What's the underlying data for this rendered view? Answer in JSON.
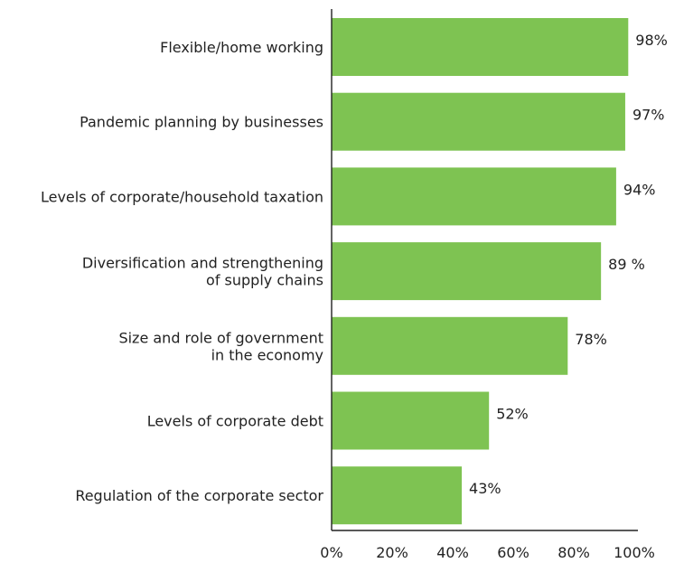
{
  "chart_data": {
    "type": "bar",
    "orientation": "horizontal",
    "title": "",
    "xlabel": "",
    "ylabel": "",
    "categories": [
      [
        "Flexible/home working"
      ],
      [
        "Pandemic planning by businesses"
      ],
      [
        "Levels of corporate/household taxation"
      ],
      [
        "Diversification and strengthening",
        "of supply chains"
      ],
      [
        "Size and role of government",
        "in the economy"
      ],
      [
        "Levels of corporate debt"
      ],
      [
        "Regulation of the corporate sector"
      ]
    ],
    "values": [
      98,
      97,
      94,
      89,
      78,
      52,
      43
    ],
    "value_labels": [
      "98%",
      "97%",
      "94%",
      "89 %",
      "78%",
      "52%",
      "43%"
    ],
    "xlim": [
      0,
      100
    ],
    "x_ticks": [
      0,
      20,
      40,
      60,
      80,
      100
    ],
    "x_tick_labels": [
      "0%",
      "20%",
      "40%",
      "60%",
      "80%",
      "100%"
    ],
    "grid": false,
    "legend": "none",
    "colors": {
      "bar": "#7ec352",
      "axis": "#222222",
      "text": "#222222"
    }
  }
}
